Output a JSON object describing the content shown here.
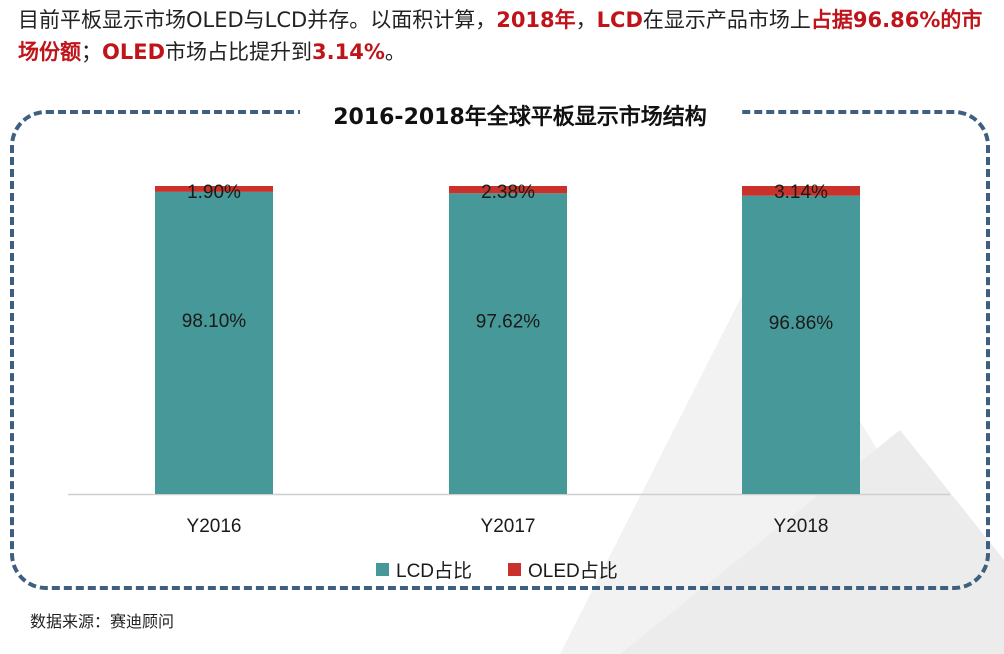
{
  "headline": {
    "p1": "目前平板显示市场OLED与LCD并存。以面积计算，",
    "h1": "2018年",
    "p2": "，",
    "h2": "LCD",
    "p3": "在显示产品市场上",
    "h3": "占据96.86%的市场份额",
    "p4": "；",
    "h4": "OLED",
    "p5": "市场占比提升到",
    "h5": "3.14%",
    "p6": "。"
  },
  "source": "数据来源：赛迪顾问",
  "colors": {
    "lcd": "#479898",
    "oled": "#c8322a",
    "accent": "#c0141b",
    "frame": "#3e5f80"
  },
  "chart_data": {
    "type": "bar",
    "stacked": true,
    "title": "2016-2018年全球平板显示市场结构",
    "categories": [
      "Y2016",
      "Y2017",
      "Y2018"
    ],
    "series": [
      {
        "name": "LCD占比",
        "values": [
          98.1,
          97.62,
          96.86
        ],
        "labels": [
          "98.10%",
          "97.62%",
          "96.86%"
        ],
        "color": "#479898"
      },
      {
        "name": "OLED占比",
        "values": [
          1.9,
          2.38,
          3.14
        ],
        "labels": [
          "1.90%",
          "2.38%",
          "3.14%"
        ],
        "color": "#c8322a"
      }
    ],
    "ylim": [
      0,
      100
    ],
    "legend_position": "bottom",
    "grid": false
  }
}
